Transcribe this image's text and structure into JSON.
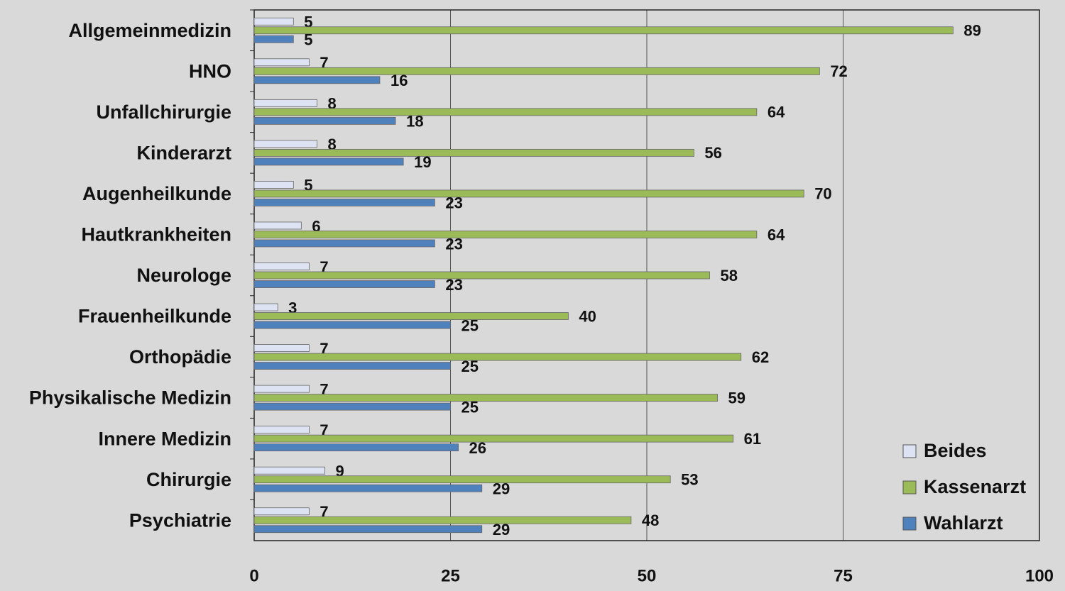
{
  "chart_data": {
    "type": "bar",
    "orientation": "horizontal",
    "categories": [
      "Allgemeinmedizin",
      "HNO",
      "Unfallchirurgie",
      "Kinderarzt",
      "Augenheilkunde",
      "Hautkrankheiten",
      "Neurologe",
      "Frauenheilkunde",
      "Orthopädie",
      "Physikalische Medizin",
      "Innere Medizin",
      "Chirurgie",
      "Psychiatrie"
    ],
    "series": [
      {
        "name": "Beides",
        "color": "#dde3f2",
        "values": [
          5,
          7,
          8,
          8,
          5,
          6,
          7,
          3,
          7,
          7,
          7,
          9,
          7
        ]
      },
      {
        "name": "Kassenarzt",
        "color": "#9bbb59",
        "values": [
          89,
          72,
          64,
          56,
          70,
          64,
          58,
          40,
          62,
          59,
          61,
          53,
          48
        ]
      },
      {
        "name": "Wahlarzt",
        "color": "#4f81bd",
        "values": [
          5,
          16,
          18,
          19,
          23,
          23,
          23,
          25,
          25,
          25,
          26,
          29,
          29
        ]
      }
    ],
    "xlim": [
      0,
      100
    ],
    "xticks": [
      0,
      25,
      50,
      75,
      100
    ],
    "grid": true,
    "legend": "lower right",
    "data_labels": true
  }
}
